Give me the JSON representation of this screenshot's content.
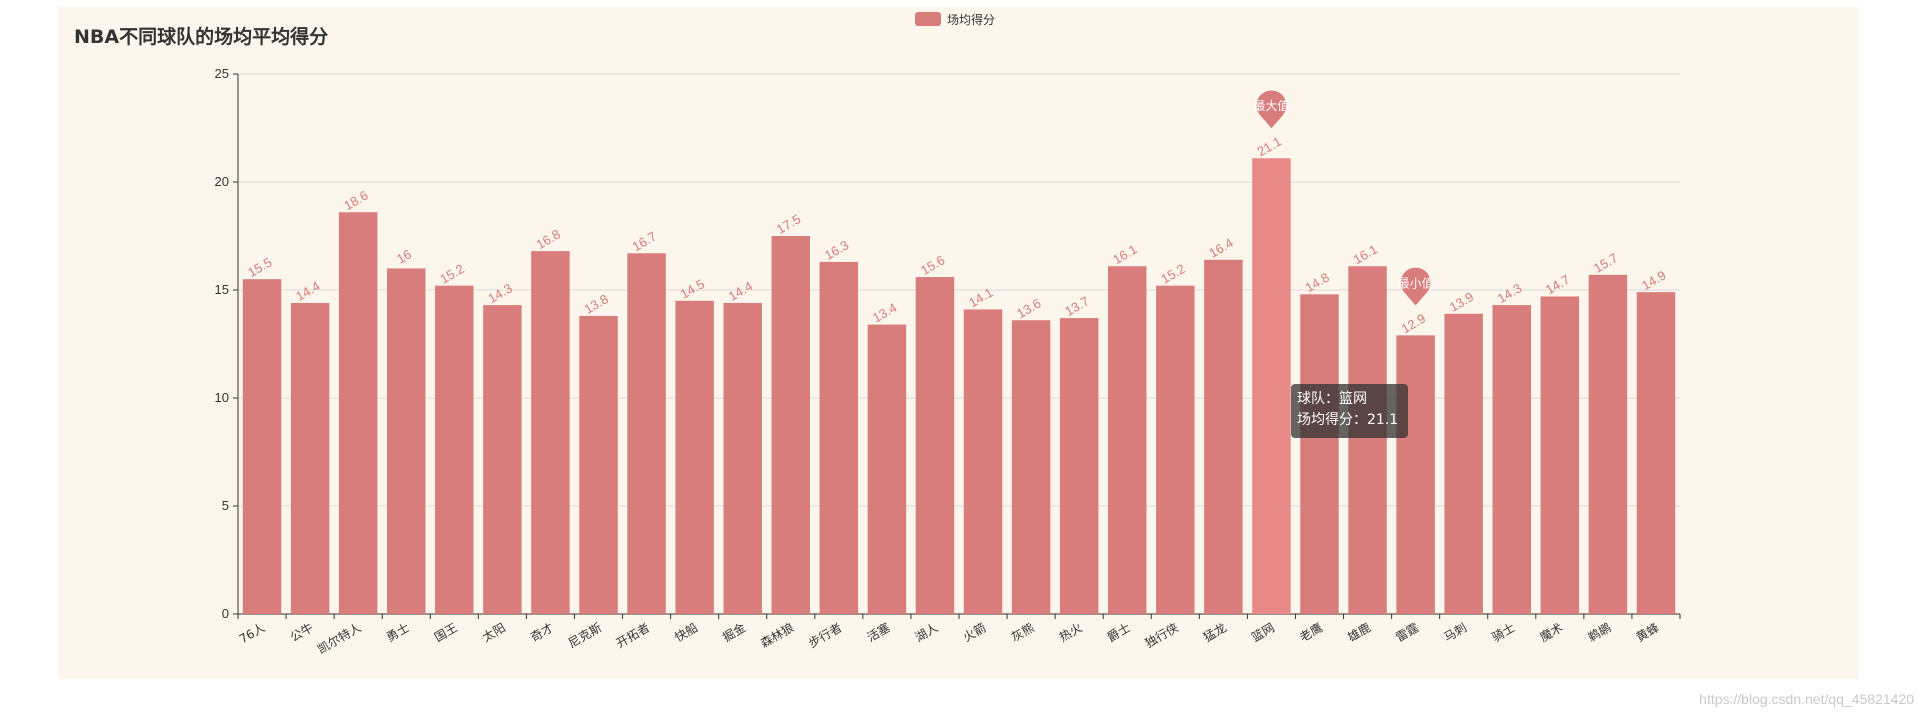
{
  "chart_data": {
    "type": "bar",
    "title": "NBA不同球队的场均平均得分",
    "categories": [
      "76人",
      "公牛",
      "凯尔特人",
      "勇士",
      "国王",
      "太阳",
      "奇才",
      "尼克斯",
      "开拓者",
      "快船",
      "掘金",
      "森林狼",
      "步行者",
      "活塞",
      "湖人",
      "火箭",
      "灰熊",
      "热火",
      "爵士",
      "独行侠",
      "猛龙",
      "篮网",
      "老鹰",
      "雄鹿",
      "雷霆",
      "马刺",
      "骑士",
      "魔术",
      "鹈鹕",
      "黄蜂"
    ],
    "series": [
      {
        "name": "场均得分",
        "values": [
          15.5,
          14.4,
          18.6,
          16,
          15.2,
          14.3,
          16.8,
          13.8,
          16.7,
          14.5,
          14.4,
          17.5,
          16.3,
          13.4,
          15.6,
          14.1,
          13.6,
          13.7,
          16.1,
          15.2,
          16.4,
          21.1,
          14.8,
          16.1,
          12.9,
          13.9,
          14.3,
          14.7,
          15.7,
          14.9
        ]
      }
    ],
    "ylim": [
      0,
      25
    ],
    "yticks": [
      0,
      5,
      10,
      15,
      20,
      25
    ],
    "grid": true,
    "legend_position": "top-center",
    "markpoints": [
      {
        "label": "最大值",
        "category": "篮网",
        "value": 21.1
      },
      {
        "label": "最小值",
        "category": "雷霆",
        "value": 12.9
      }
    ],
    "highlighted_category": "篮网",
    "colors": {
      "bar": "#d87c7c",
      "bar_highlight": "#e88887",
      "label": "#d87c7c",
      "pin": "#d87c7c"
    }
  },
  "tooltip": {
    "line1": "球队：篮网",
    "line2": "场均得分：21.1"
  },
  "watermark": "https://blog.csdn.net/qq_45821420"
}
